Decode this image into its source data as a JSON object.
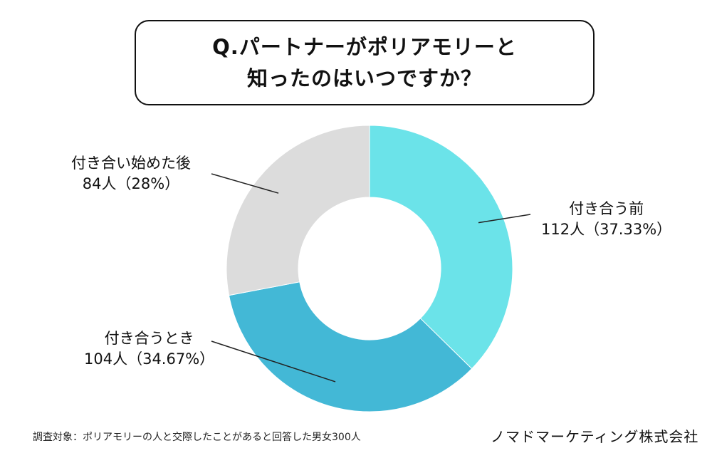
{
  "title": {
    "line1": "Q.パートナーがポリアモリーと",
    "line2": "知ったのはいつですか？"
  },
  "chart_data": {
    "type": "pie",
    "style": "donut",
    "title": "Q.パートナーがポリアモリーと知ったのはいつですか？",
    "slices": [
      {
        "label": "付き合う前",
        "count": 112,
        "count_text": "112人（37.33%）",
        "percent": 37.33,
        "color": "#6be3e9"
      },
      {
        "label": "付き合うとき",
        "count": 104,
        "count_text": "104人（34.67%）",
        "percent": 34.67,
        "color": "#43b8d6"
      },
      {
        "label": "付き合い始めた後",
        "count": 84,
        "count_text": "84人（28%）",
        "percent": 28,
        "color": "#dcdcdc"
      }
    ],
    "total": 300,
    "start": "top, clockwise"
  },
  "footnote": "調査対象：ポリアモリーの人と交際したことがあると回答した男女300人",
  "company": "ノマドマーケティング株式会社"
}
